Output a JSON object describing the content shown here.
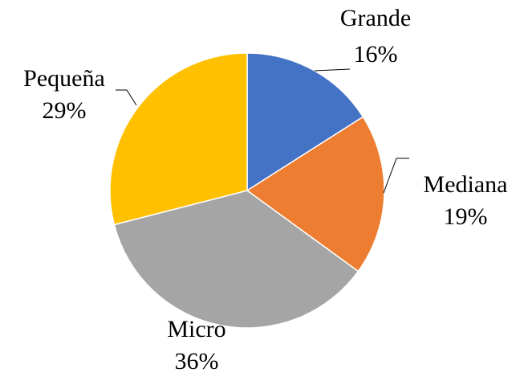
{
  "chart_data": {
    "type": "pie",
    "categories": [
      "Grande",
      "Mediana",
      "Micro",
      "Pequeña"
    ],
    "values": [
      16,
      19,
      36,
      29
    ],
    "value_labels": [
      "16%",
      "19%",
      "36%",
      "29%"
    ],
    "colors": [
      "#4472c4",
      "#ed7d31",
      "#a5a5a5",
      "#ffc000"
    ]
  }
}
